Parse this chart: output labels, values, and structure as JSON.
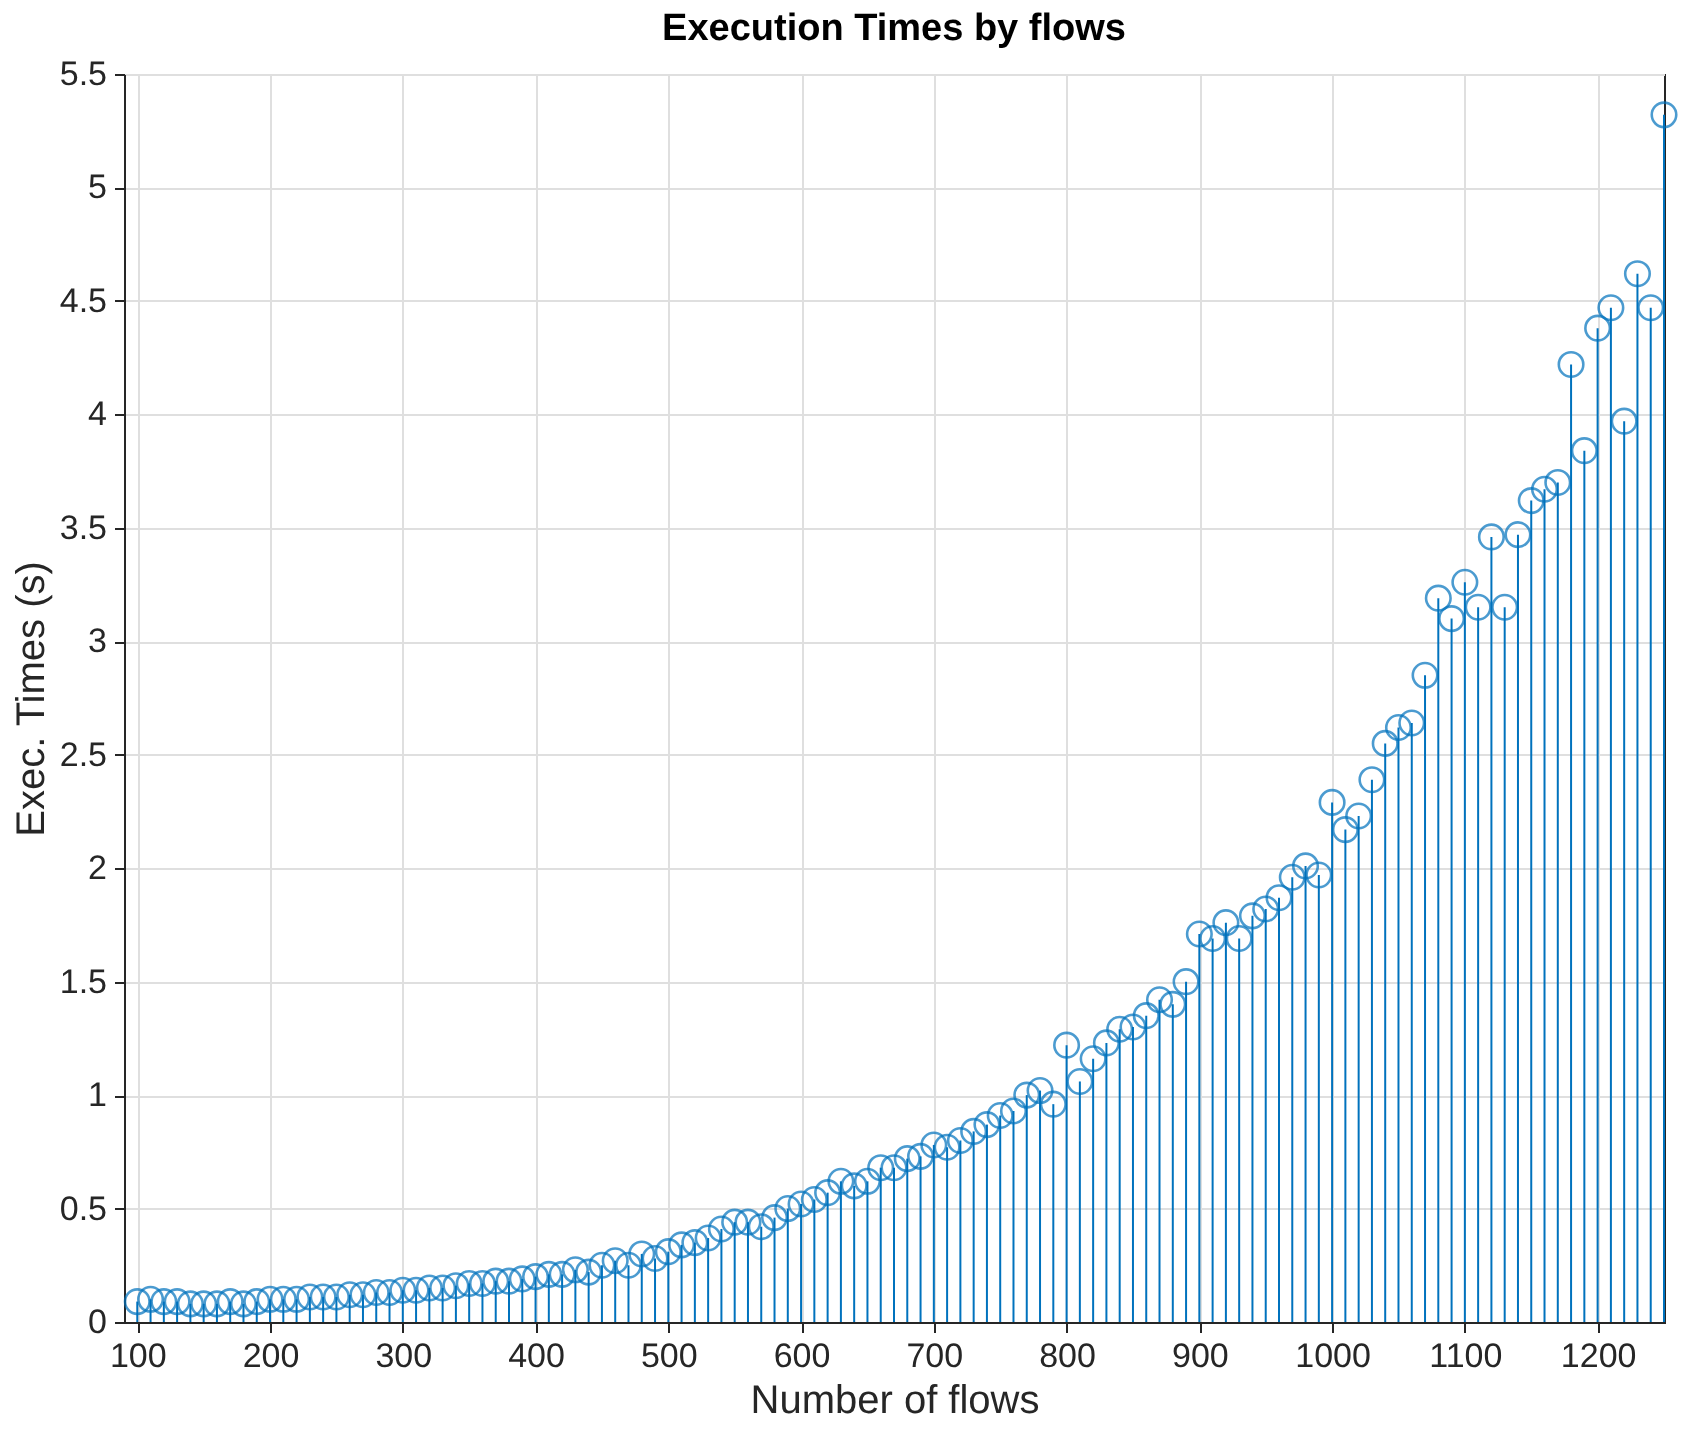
{
  "chart_data": {
    "type": "lollipop",
    "title": "Execution Times by flows",
    "xlabel": "Number of flows",
    "ylabel": "Exec. Times (s)",
    "x": [
      100,
      110,
      120,
      130,
      140,
      150,
      160,
      170,
      180,
      190,
      200,
      210,
      220,
      230,
      240,
      250,
      260,
      270,
      280,
      290,
      300,
      310,
      320,
      330,
      340,
      350,
      360,
      370,
      380,
      390,
      400,
      410,
      420,
      430,
      440,
      450,
      460,
      470,
      480,
      490,
      500,
      510,
      520,
      530,
      540,
      550,
      560,
      570,
      580,
      590,
      600,
      610,
      620,
      630,
      640,
      650,
      660,
      670,
      680,
      690,
      700,
      710,
      720,
      730,
      740,
      750,
      760,
      770,
      780,
      790,
      800,
      810,
      820,
      830,
      840,
      850,
      860,
      870,
      880,
      890,
      900,
      910,
      920,
      930,
      940,
      950,
      960,
      970,
      980,
      990,
      1000,
      1010,
      1020,
      1030,
      1040,
      1050,
      1060,
      1070,
      1080,
      1090,
      1100,
      1110,
      1120,
      1130,
      1140,
      1150,
      1160,
      1170,
      1180,
      1190,
      1200,
      1210,
      1220,
      1230,
      1240,
      1250
    ],
    "series": [
      {
        "color": "#0072bd",
        "values": [
          0.09,
          0.1,
          0.09,
          0.09,
          0.08,
          0.08,
          0.08,
          0.09,
          0.08,
          0.09,
          0.1,
          0.1,
          0.1,
          0.11,
          0.11,
          0.11,
          0.12,
          0.12,
          0.13,
          0.13,
          0.14,
          0.14,
          0.15,
          0.15,
          0.16,
          0.17,
          0.17,
          0.18,
          0.18,
          0.19,
          0.2,
          0.21,
          0.21,
          0.23,
          0.22,
          0.25,
          0.27,
          0.25,
          0.3,
          0.28,
          0.31,
          0.34,
          0.35,
          0.37,
          0.41,
          0.44,
          0.44,
          0.42,
          0.46,
          0.5,
          0.52,
          0.54,
          0.57,
          0.62,
          0.6,
          0.62,
          0.68,
          0.68,
          0.72,
          0.73,
          0.78,
          0.77,
          0.8,
          0.84,
          0.87,
          0.91,
          0.93,
          1.0,
          1.02,
          0.96,
          1.22,
          1.06,
          1.16,
          1.23,
          1.29,
          1.3,
          1.35,
          1.42,
          1.4,
          1.5,
          1.71,
          1.69,
          1.76,
          1.69,
          1.79,
          1.82,
          1.87,
          1.96,
          2.01,
          1.97,
          2.29,
          2.17,
          2.23,
          2.39,
          2.55,
          2.62,
          2.64,
          2.85,
          3.19,
          3.1,
          3.26,
          3.15,
          3.46,
          3.15,
          3.47,
          3.62,
          3.67,
          3.7,
          4.22,
          3.84,
          4.38,
          4.47,
          3.97,
          4.62,
          4.47,
          5.32
        ]
      }
    ],
    "xlim": [
      90,
      1250
    ],
    "ylim": [
      0,
      5.5
    ],
    "xticks": [
      100,
      200,
      300,
      400,
      500,
      600,
      700,
      800,
      900,
      1000,
      1100,
      1200
    ],
    "yticks": [
      0,
      0.5,
      1,
      1.5,
      2,
      2.5,
      3,
      3.5,
      4,
      4.5,
      5,
      5.5
    ],
    "grid": true,
    "marker": "circle"
  }
}
